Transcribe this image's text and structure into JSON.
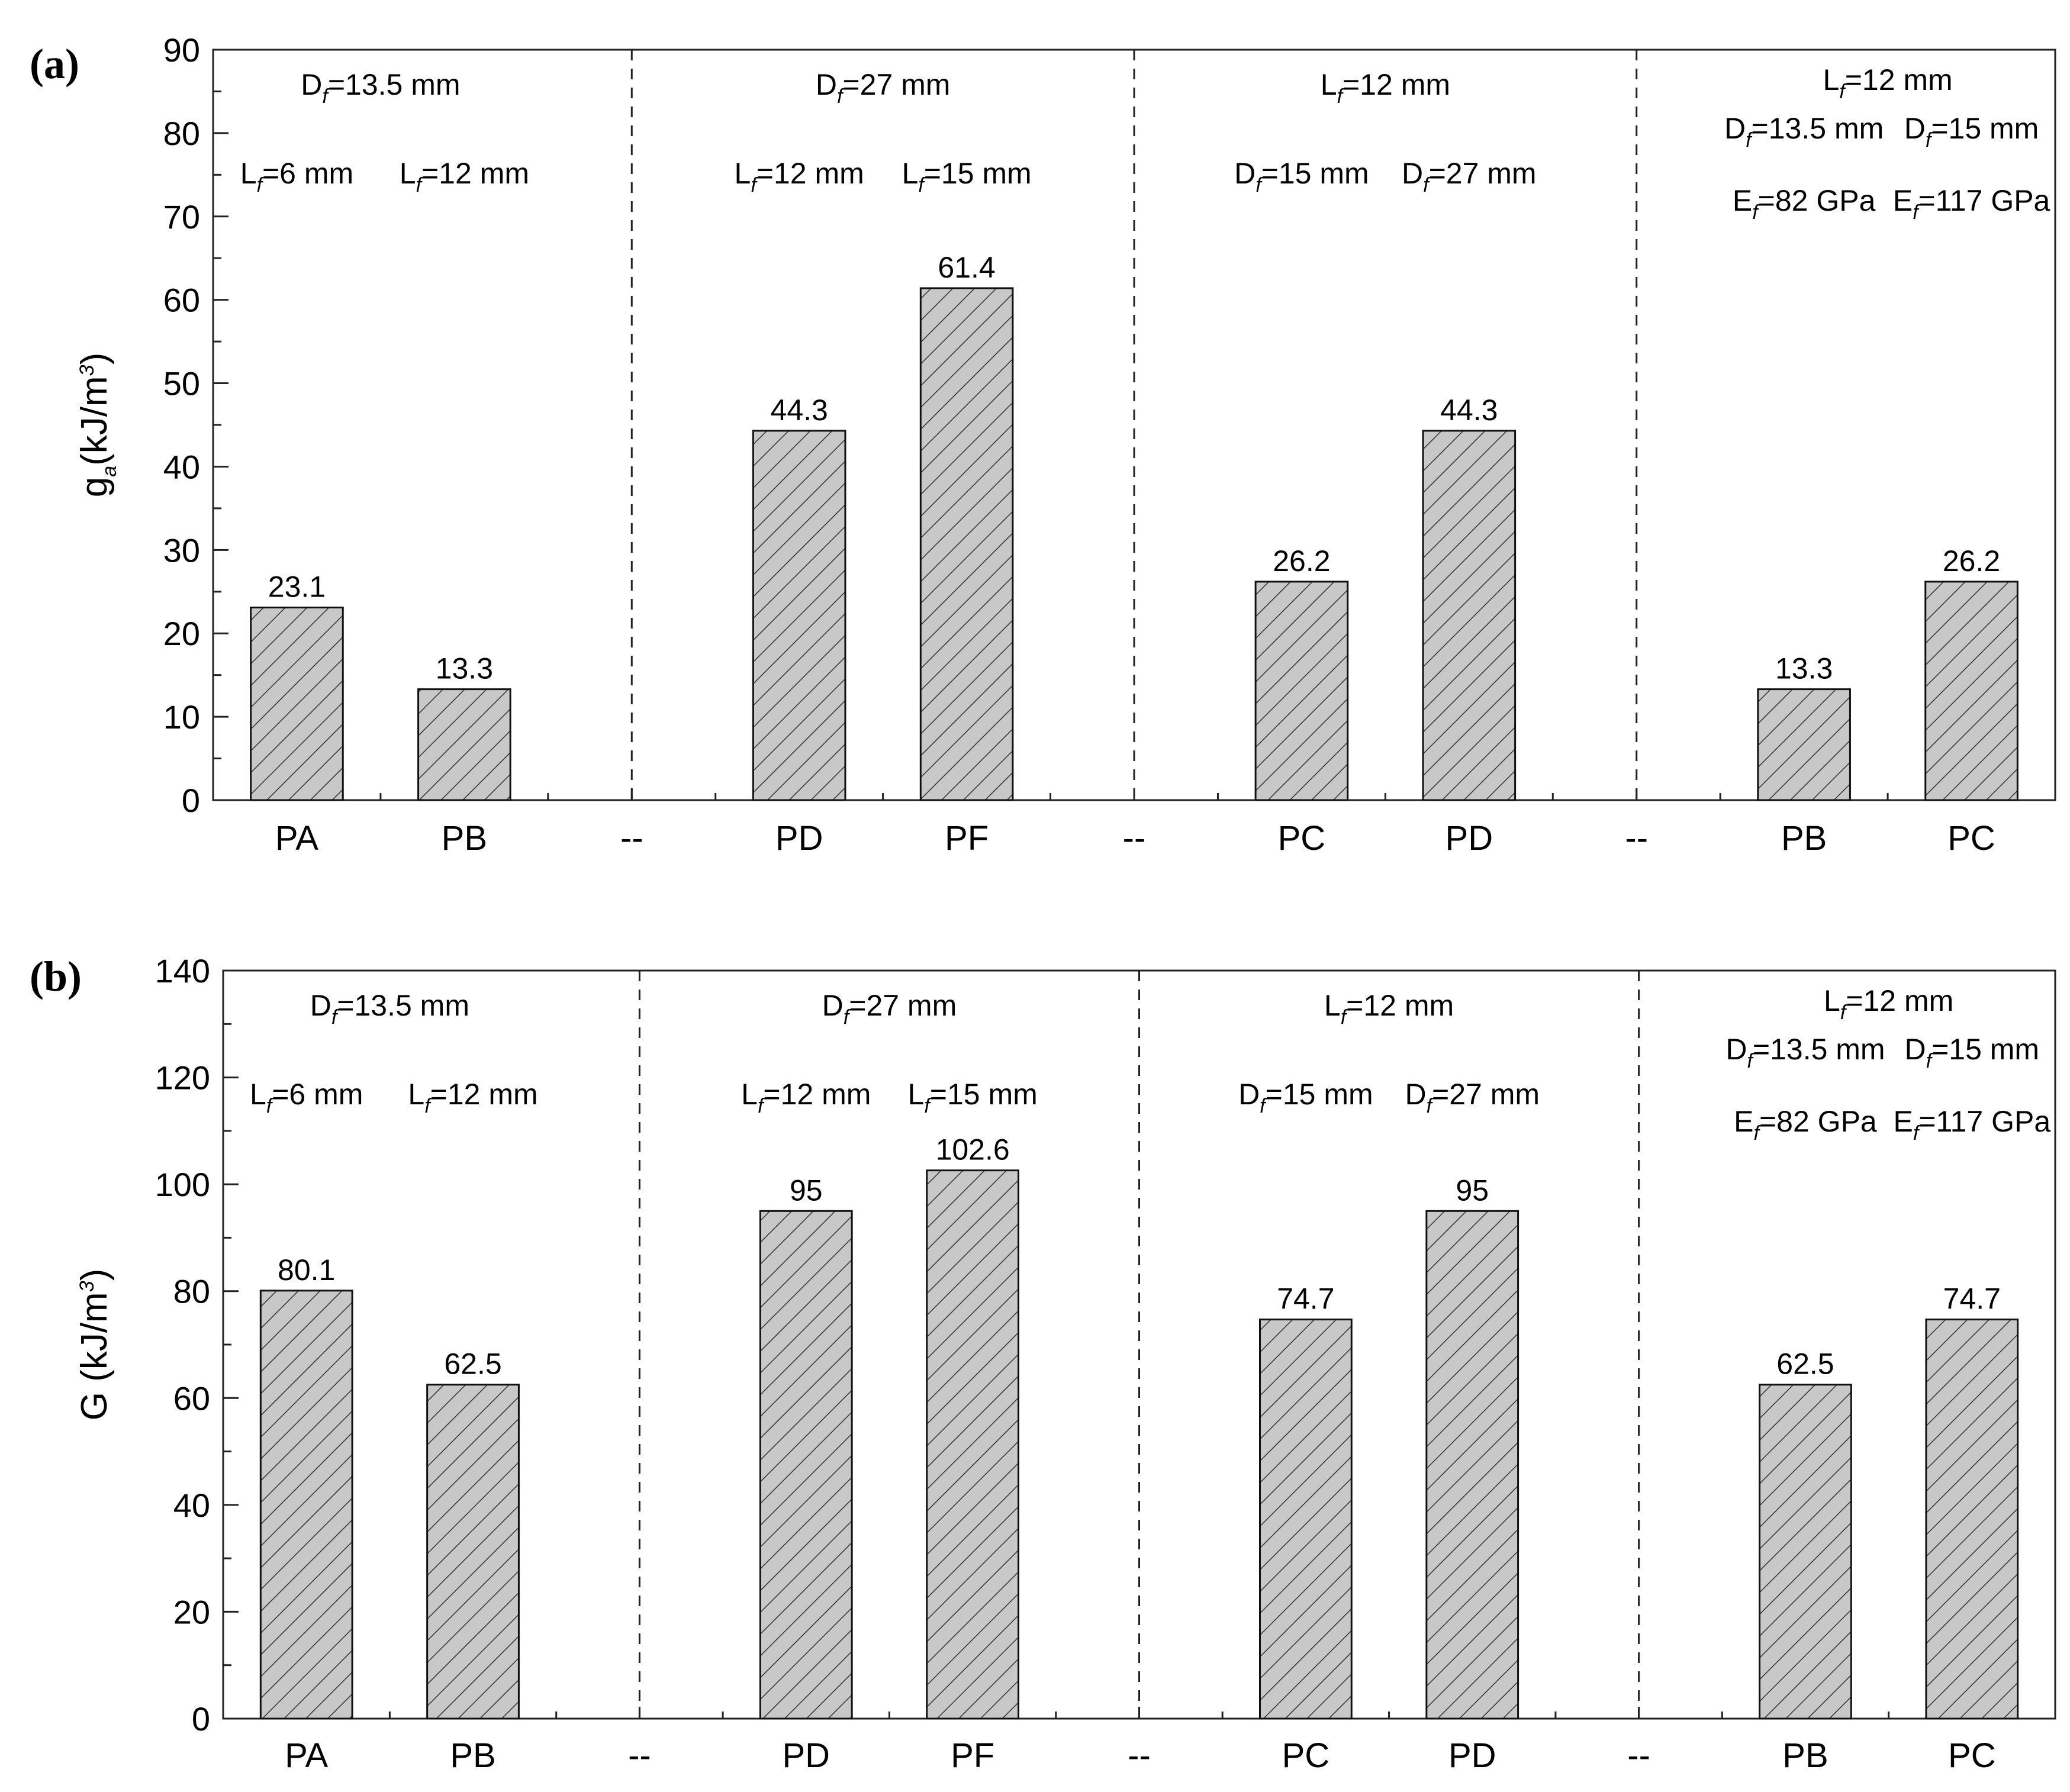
{
  "chart_data": [
    {
      "type": "bar",
      "panel_label": "(a)",
      "ylabel": "g",
      "ylabel_sub": "a",
      "ylabel_unit": "(kJ/m",
      "ylabel_sup": "3",
      "ylabel_close": ")",
      "ylim": [
        0,
        90
      ],
      "yticks": [
        "0",
        "10",
        "20",
        "30",
        "40",
        "50",
        "60",
        "70",
        "80",
        "90"
      ],
      "categories": [
        "PA",
        "PB",
        "--",
        "PD",
        "PF",
        "--",
        "PC",
        "PD",
        "--",
        "PB",
        "PC"
      ],
      "values": [
        23.1,
        13.3,
        null,
        44.3,
        61.4,
        null,
        26.2,
        44.3,
        null,
        13.3,
        26.2
      ],
      "value_labels": [
        "23.1",
        "13.3",
        "",
        "44.3",
        "61.4",
        "",
        "26.2",
        "44.3",
        "",
        "13.3",
        "26.2"
      ],
      "bar_color": "#c8c8c8",
      "groups": [
        {
          "header": {
            "main": "D",
            "sub": "f",
            "rest": "=13.5 mm"
          },
          "bar_annotations": [
            [
              {
                "main": "L",
                "sub": "f",
                "rest": "=6 mm"
              }
            ],
            [
              {
                "main": "L",
                "sub": "f",
                "rest": "=12 mm"
              }
            ]
          ]
        },
        {
          "header": {
            "main": "D",
            "sub": "f",
            "rest": "=27 mm"
          },
          "bar_annotations": [
            [
              {
                "main": "L",
                "sub": "f",
                "rest": "=12 mm"
              }
            ],
            [
              {
                "main": "L",
                "sub": "f",
                "rest": "=15 mm"
              }
            ]
          ]
        },
        {
          "header": {
            "main": "L",
            "sub": "f",
            "rest": "=12 mm"
          },
          "bar_annotations": [
            [
              {
                "main": "D",
                "sub": "f",
                "rest": "=15 mm"
              }
            ],
            [
              {
                "main": "D",
                "sub": "f",
                "rest": "=27 mm"
              }
            ]
          ]
        },
        {
          "header": {
            "main": "L",
            "sub": "f",
            "rest": "=12 mm"
          },
          "bar_annotations": [
            [
              {
                "main": "D",
                "sub": "f",
                "rest": "=13.5 mm"
              },
              {
                "main": "E",
                "sub": "f",
                "rest": "=82 GPa"
              }
            ],
            [
              {
                "main": "D",
                "sub": "f",
                "rest": "=15 mm"
              },
              {
                "main": "E",
                "sub": "f",
                "rest": "=117 GPa"
              }
            ]
          ]
        }
      ]
    },
    {
      "type": "bar",
      "panel_label": "(b)",
      "ylabel": "G",
      "ylabel_sub": "",
      "ylabel_unit": " (kJ/m",
      "ylabel_sup": "3",
      "ylabel_close": ")",
      "ylim": [
        0,
        140
      ],
      "yticks": [
        "0",
        "20",
        "40",
        "60",
        "80",
        "100",
        "120",
        "140"
      ],
      "categories": [
        "PA",
        "PB",
        "--",
        "PD",
        "PF",
        "--",
        "PC",
        "PD",
        "--",
        "PB",
        "PC"
      ],
      "values": [
        80.1,
        62.5,
        null,
        95,
        102.6,
        null,
        74.7,
        95,
        null,
        62.5,
        74.7
      ],
      "value_labels": [
        "80.1",
        "62.5",
        "",
        "95",
        "102.6",
        "",
        "74.7",
        "95",
        "",
        "62.5",
        "74.7"
      ],
      "bar_color": "#c8c8c8",
      "groups": [
        {
          "header": {
            "main": "D",
            "sub": "f",
            "rest": "=13.5 mm"
          },
          "bar_annotations": [
            [
              {
                "main": "L",
                "sub": "f",
                "rest": "=6 mm"
              }
            ],
            [
              {
                "main": "L",
                "sub": "f",
                "rest": "=12 mm"
              }
            ]
          ]
        },
        {
          "header": {
            "main": "D",
            "sub": "f",
            "rest": "=27 mm"
          },
          "bar_annotations": [
            [
              {
                "main": "L",
                "sub": "f",
                "rest": "=12 mm"
              }
            ],
            [
              {
                "main": "L",
                "sub": "f",
                "rest": "=15 mm"
              }
            ]
          ]
        },
        {
          "header": {
            "main": "L",
            "sub": "f",
            "rest": "=12 mm"
          },
          "bar_annotations": [
            [
              {
                "main": "D",
                "sub": "f",
                "rest": "=15 mm"
              }
            ],
            [
              {
                "main": "D",
                "sub": "f",
                "rest": "=27 mm"
              }
            ]
          ]
        },
        {
          "header": {
            "main": "L",
            "sub": "f",
            "rest": "=12 mm"
          },
          "bar_annotations": [
            [
              {
                "main": "D",
                "sub": "f",
                "rest": "=13.5 mm"
              },
              {
                "main": "E",
                "sub": "f",
                "rest": "=82 GPa"
              }
            ],
            [
              {
                "main": "D",
                "sub": "f",
                "rest": "=15 mm"
              },
              {
                "main": "E",
                "sub": "f",
                "rest": "=117 GPa"
              }
            ]
          ]
        }
      ]
    }
  ]
}
